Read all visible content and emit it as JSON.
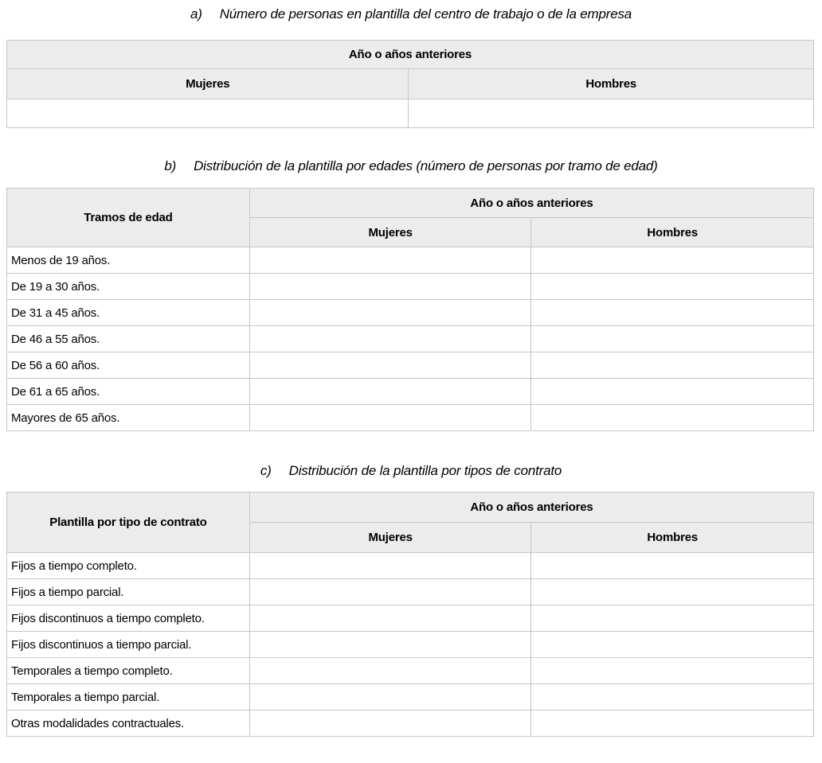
{
  "page": {
    "background": "#ffffff",
    "text_color": "#000000",
    "header_bg": "#ececec",
    "border_color": "#c6c6c6"
  },
  "sections": [
    {
      "marker": "a)",
      "title": "Número de personas en plantilla del centro de trabajo o de la empresa",
      "table": {
        "year_header": "Año o años anteriores",
        "columns": [
          "Mujeres",
          "Hombres"
        ],
        "entry_values": [
          "",
          ""
        ]
      }
    },
    {
      "marker": "b)",
      "title": "Distribución de la plantilla por edades (número de personas por tramo de edad)",
      "table": {
        "row_header": "Tramos de edad",
        "year_header": "Año o años anteriores",
        "columns": [
          "Mujeres",
          "Hombres"
        ],
        "rows": [
          "Menos de 19 años.",
          "De 19 a 30 años.",
          "De 31 a 45 años.",
          "De 46 a 55 años.",
          "De 56 a 60 años.",
          "De 61 a 65 años.",
          "Mayores de 65 años."
        ]
      }
    },
    {
      "marker": "c)",
      "title": "Distribución de la plantilla por tipos de contrato",
      "table": {
        "row_header": "Plantilla por tipo de contrato",
        "year_header": "Año o años anteriores",
        "columns": [
          "Mujeres",
          "Hombres"
        ],
        "rows": [
          "Fijos a tiempo completo.",
          "Fijos a tiempo parcial.",
          "Fijos discontinuos a tiempo completo.",
          "Fijos discontinuos a tiempo parcial.",
          "Temporales a tiempo completo.",
          "Temporales a tiempo parcial.",
          "Otras modalidades contractuales."
        ]
      }
    }
  ]
}
